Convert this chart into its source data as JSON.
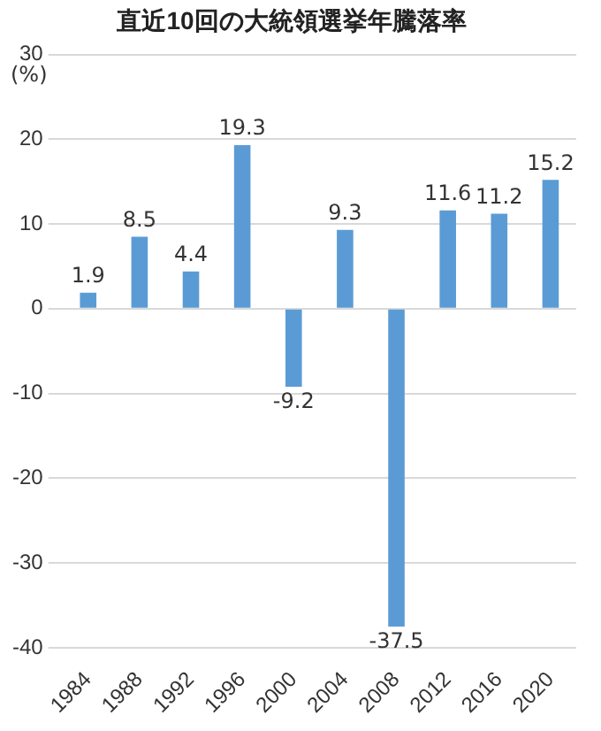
{
  "chart_data": {
    "type": "bar",
    "title": "直近10回の大統領選挙年騰落率",
    "ylabel": "(%)",
    "categories": [
      "1984",
      "1988",
      "1992",
      "1996",
      "2000",
      "2004",
      "2008",
      "2012",
      "2016",
      "2020"
    ],
    "values": [
      1.9,
      8.5,
      4.4,
      19.3,
      -9.2,
      9.3,
      -37.5,
      11.6,
      11.2,
      15.2
    ],
    "color": "#5b9bd5",
    "ylim": [
      -40,
      30
    ],
    "yticks": [
      -40,
      -30,
      -20,
      -10,
      0,
      10,
      20,
      30
    ],
    "grid": "y",
    "data_labels": true,
    "legend": false
  }
}
